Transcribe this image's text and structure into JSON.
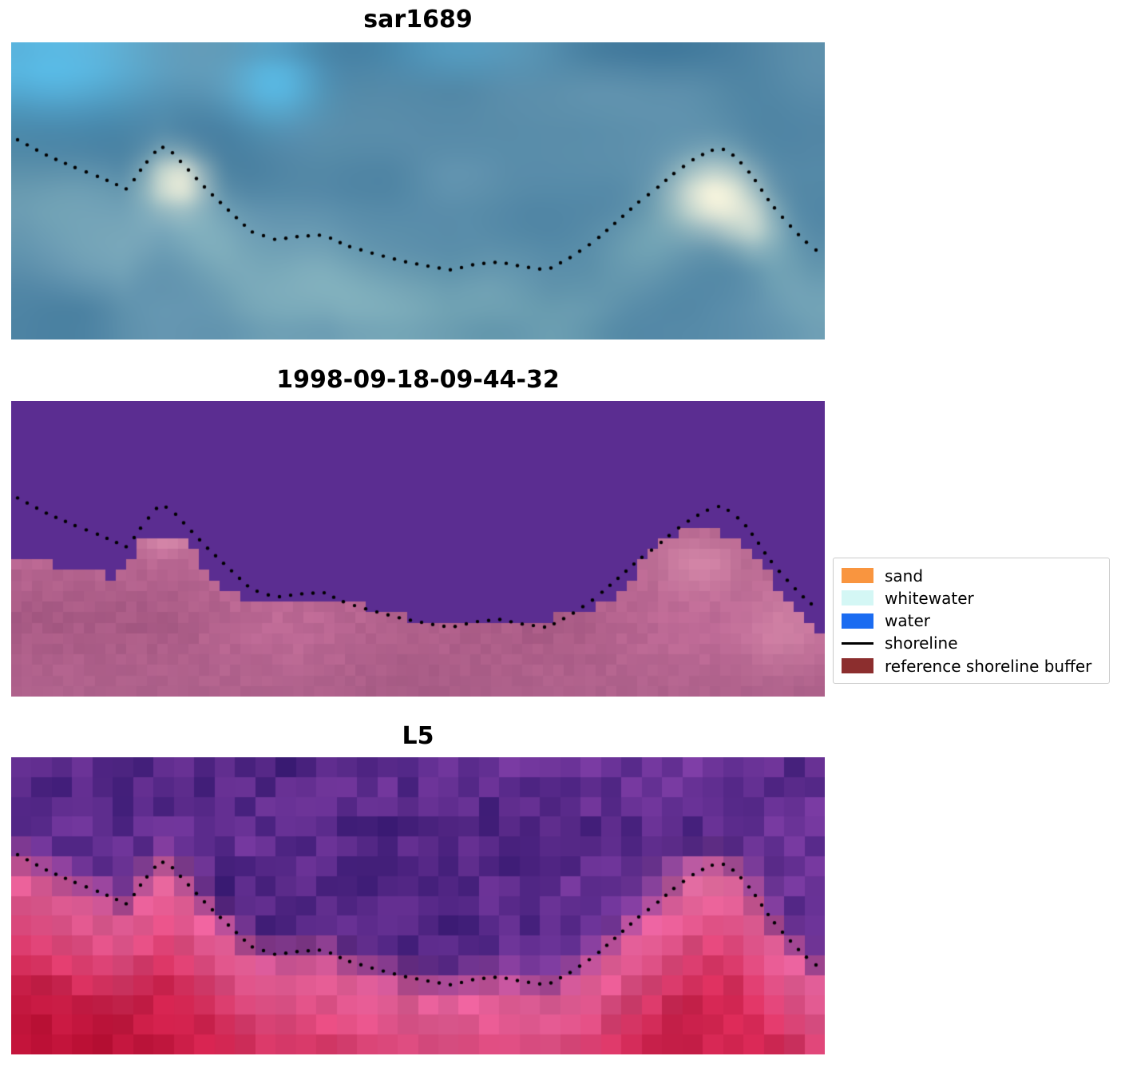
{
  "chart_data": {
    "type": "heatmap",
    "figure_kind": "coastal satellite imagery panels with detected shoreline overlay",
    "axes": "off",
    "background": "#ffffff",
    "panels": [
      {
        "id": "sar",
        "title": "sar1689",
        "kind": "SAR backscatter composite",
        "palette": {
          "base_blue": "#568aa8",
          "bright_cyan": "#5ac1ee",
          "cream_highlight": "#faf6de",
          "pale_shore": "#acd6d2"
        }
      },
      {
        "id": "classification",
        "title": "1998-09-18-09-44-32",
        "kind": "pixel classification map",
        "palette": {
          "water_purple": "#5b2d91",
          "buffer_pink": "#b46390",
          "buffer_light_pink": "#e094b4",
          "buffer_dark": "#9e587e"
        }
      },
      {
        "id": "l5",
        "title": "L5",
        "kind": "Landsat 5 false-color composite",
        "palette": {
          "upper_purple": "#5d2c8d",
          "transition_pink": "#e25e96",
          "lower_red": "#d42652",
          "deep_red": "#b60c30"
        }
      }
    ],
    "shoreline": {
      "style": "dotted",
      "color": "#000000",
      "points_normalized": [
        [
          0.008,
          0.328
        ],
        [
          0.045,
          0.382
        ],
        [
          0.079,
          0.422
        ],
        [
          0.109,
          0.454
        ],
        [
          0.143,
          0.495
        ],
        [
          0.161,
          0.422
        ],
        [
          0.183,
          0.349
        ],
        [
          0.197,
          0.368
        ],
        [
          0.217,
          0.427
        ],
        [
          0.241,
          0.497
        ],
        [
          0.266,
          0.562
        ],
        [
          0.295,
          0.637
        ],
        [
          0.325,
          0.664
        ],
        [
          0.354,
          0.653
        ],
        [
          0.384,
          0.648
        ],
        [
          0.413,
          0.685
        ],
        [
          0.447,
          0.712
        ],
        [
          0.482,
          0.737
        ],
        [
          0.516,
          0.755
        ],
        [
          0.541,
          0.766
        ],
        [
          0.57,
          0.747
        ],
        [
          0.6,
          0.739
        ],
        [
          0.629,
          0.755
        ],
        [
          0.659,
          0.766
        ],
        [
          0.688,
          0.723
        ],
        [
          0.717,
          0.669
        ],
        [
          0.747,
          0.597
        ],
        [
          0.771,
          0.538
        ],
        [
          0.793,
          0.492
        ],
        [
          0.816,
          0.438
        ],
        [
          0.838,
          0.395
        ],
        [
          0.858,
          0.366
        ],
        [
          0.872,
          0.355
        ],
        [
          0.887,
          0.379
        ],
        [
          0.902,
          0.419
        ],
        [
          0.916,
          0.47
        ],
        [
          0.928,
          0.521
        ],
        [
          0.941,
          0.567
        ],
        [
          0.955,
          0.61
        ],
        [
          0.968,
          0.648
        ],
        [
          0.979,
          0.677
        ],
        [
          0.989,
          0.699
        ]
      ]
    },
    "classification_boundary_normalized": [
      [
        0.0,
        0.545
      ],
      [
        0.1,
        0.56
      ],
      [
        0.125,
        0.6
      ],
      [
        0.145,
        0.565
      ],
      [
        0.155,
        0.5
      ],
      [
        0.165,
        0.46
      ],
      [
        0.205,
        0.455
      ],
      [
        0.22,
        0.5
      ],
      [
        0.235,
        0.555
      ],
      [
        0.255,
        0.615
      ],
      [
        0.27,
        0.655
      ],
      [
        0.3,
        0.67
      ],
      [
        0.4,
        0.685
      ],
      [
        0.44,
        0.7
      ],
      [
        0.475,
        0.715
      ],
      [
        0.495,
        0.765
      ],
      [
        0.64,
        0.765
      ],
      [
        0.665,
        0.735
      ],
      [
        0.69,
        0.72
      ],
      [
        0.715,
        0.7
      ],
      [
        0.735,
        0.665
      ],
      [
        0.755,
        0.635
      ],
      [
        0.775,
        0.555
      ],
      [
        0.79,
        0.5
      ],
      [
        0.805,
        0.475
      ],
      [
        0.825,
        0.44
      ],
      [
        0.875,
        0.44
      ],
      [
        0.89,
        0.475
      ],
      [
        0.905,
        0.52
      ],
      [
        0.925,
        0.565
      ],
      [
        0.94,
        0.625
      ],
      [
        0.955,
        0.675
      ],
      [
        0.97,
        0.73
      ],
      [
        0.985,
        0.78
      ],
      [
        1.0,
        0.79
      ]
    ],
    "legend": {
      "position": "center-right",
      "items": [
        {
          "label": "sand",
          "swatch": "patch",
          "color": "#f9953f"
        },
        {
          "label": "whitewater",
          "swatch": "patch",
          "color": "#d4f7f5"
        },
        {
          "label": "water",
          "swatch": "patch",
          "color": "#1b6cf1"
        },
        {
          "label": "shoreline",
          "swatch": "line",
          "color": "#000000"
        },
        {
          "label": "reference shoreline buffer",
          "swatch": "patch",
          "color": "#8c2e2e"
        }
      ]
    }
  }
}
